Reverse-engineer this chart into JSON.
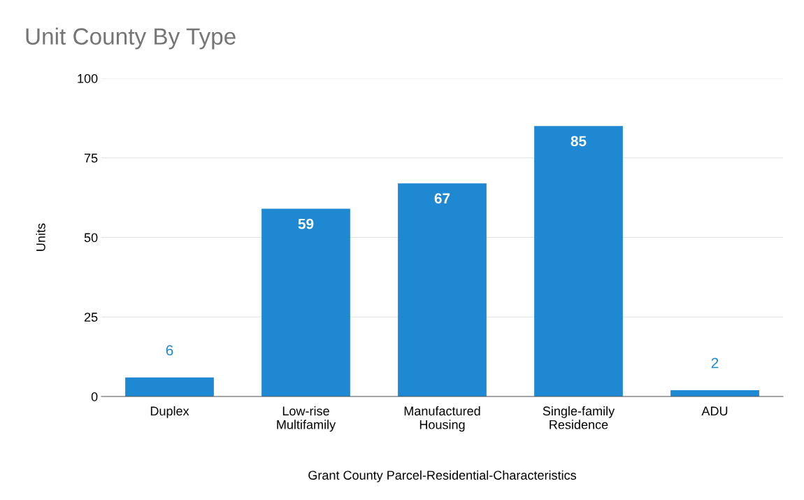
{
  "chart_data": {
    "type": "bar",
    "title": "Unit County By Type",
    "xlabel": "Grant County Parcel-Residential-Characteristics",
    "ylabel": "Units",
    "categories": [
      "Duplex",
      "Low-rise\nMultifamily",
      "Manufactured\nHousing",
      "Single-family\nResidence",
      "ADU"
    ],
    "values": [
      6,
      59,
      67,
      85,
      2
    ],
    "color": "#1e88d2",
    "ylim": [
      0,
      100
    ],
    "yticks": [
      0,
      25,
      50,
      75,
      100
    ],
    "grid": "y",
    "data_labels": true,
    "legend": false
  }
}
